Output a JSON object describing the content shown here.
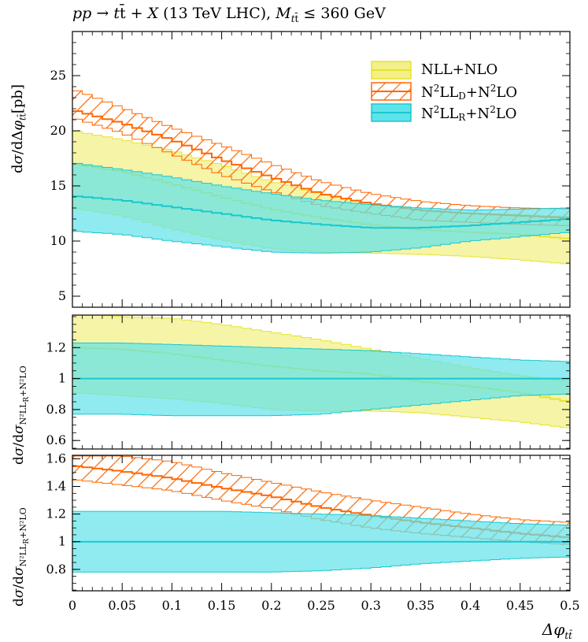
{
  "title": "pp → tt̄ + X (13 TeV LHC), M_tt̄ ≤ 360 GeV",
  "colors": {
    "nll": "#e6e32f",
    "nll_fill": "#f3f08a",
    "d": "#ff6600",
    "r": "#18c8cf",
    "r_fill": "#5fe3ea"
  },
  "chart_data": [
    {
      "type": "line",
      "panel": "main",
      "ylabel": "dσ/dΔφ_tt̄[pb]",
      "xlim": [
        0,
        0.5
      ],
      "ylim": [
        4,
        29
      ],
      "yticks": [
        "5",
        "10",
        "15",
        "20",
        "25"
      ],
      "x": [
        0,
        0.05,
        0.1,
        0.15,
        0.2,
        0.25,
        0.3,
        0.35,
        0.4,
        0.45,
        0.5
      ],
      "legend": [
        "NLL+NLO",
        "N²LL_D+N²LO",
        "N²LL_R+N²LO"
      ],
      "legend_position": "top-right",
      "series": [
        {
          "name": "NLL+NLO",
          "style": "band",
          "central": [
            17.0,
            16.3,
            15.2,
            14.0,
            12.9,
            12.1,
            11.5,
            11.0,
            10.8,
            10.6,
            10.2
          ],
          "lower": [
            13.0,
            12.3,
            11.1,
            10.1,
            9.3,
            9.0,
            8.9,
            8.8,
            8.6,
            8.3,
            7.9
          ],
          "upper": [
            20.0,
            19.2,
            18.2,
            16.9,
            15.4,
            14.3,
            13.4,
            12.8,
            12.5,
            12.4,
            12.2
          ]
        },
        {
          "name": "N²LL_D+N²LO",
          "style": "hatched",
          "central": [
            21.9,
            20.7,
            19.2,
            17.4,
            15.8,
            14.3,
            13.4,
            12.8,
            12.5,
            12.3,
            12.1
          ],
          "lower": [
            21.2,
            19.8,
            17.9,
            16.0,
            14.5,
            13.2,
            12.5,
            11.9,
            11.7,
            11.5,
            11.4
          ],
          "upper": [
            23.8,
            22.1,
            20.3,
            18.7,
            17.0,
            15.4,
            14.3,
            13.6,
            13.2,
            13.0,
            12.9
          ]
        },
        {
          "name": "N²LL_R+N²LO",
          "style": "band",
          "central": [
            14.1,
            13.7,
            13.1,
            12.5,
            11.9,
            11.5,
            11.2,
            11.2,
            11.4,
            11.7,
            12.0
          ],
          "lower": [
            10.9,
            10.6,
            10.0,
            9.5,
            9.0,
            8.9,
            9.0,
            9.4,
            10.0,
            10.4,
            10.8
          ],
          "upper": [
            17.1,
            16.5,
            15.8,
            15.0,
            14.3,
            13.7,
            13.3,
            13.0,
            12.8,
            12.9,
            13.0
          ]
        }
      ]
    },
    {
      "type": "line",
      "panel": "ratio1",
      "ylabel": "dσ/dσ_N²LL_R+N²LO",
      "xlim": [
        0,
        0.5
      ],
      "ylim": [
        0.545,
        1.41
      ],
      "yticks": [
        "0.6",
        "0.8",
        "1",
        "1.2"
      ],
      "x": [
        0,
        0.05,
        0.1,
        0.15,
        0.2,
        0.25,
        0.3,
        0.35,
        0.4,
        0.45,
        0.5
      ],
      "series": [
        {
          "name": "NLL+NLO",
          "style": "band",
          "central": [
            1.2,
            1.19,
            1.16,
            1.12,
            1.08,
            1.05,
            1.03,
            0.98,
            0.95,
            0.91,
            0.85
          ],
          "lower": [
            0.91,
            0.89,
            0.87,
            0.84,
            0.8,
            0.79,
            0.79,
            0.78,
            0.75,
            0.72,
            0.68
          ],
          "upper": [
            1.42,
            1.4,
            1.39,
            1.35,
            1.3,
            1.25,
            1.19,
            1.13,
            1.07,
            1.02,
            0.98
          ]
        },
        {
          "name": "N²LL_R+N²LO",
          "style": "band",
          "central": [
            1,
            1,
            1,
            1,
            1,
            1,
            1,
            1,
            1,
            1,
            1
          ],
          "lower": [
            0.77,
            0.77,
            0.76,
            0.76,
            0.76,
            0.77,
            0.8,
            0.83,
            0.86,
            0.89,
            0.9
          ],
          "upper": [
            1.23,
            1.23,
            1.22,
            1.21,
            1.2,
            1.19,
            1.18,
            1.16,
            1.14,
            1.12,
            1.11
          ]
        }
      ]
    },
    {
      "type": "line",
      "panel": "ratio2",
      "ylabel": "dσ/dσ_N²LL_R+N²LO",
      "xlabel": "Δφ_tt̄",
      "xlim": [
        0,
        0.5
      ],
      "xticks": [
        "0",
        "0.05",
        "0.1",
        "0.15",
        "0.2",
        "0.25",
        "0.3",
        "0.35",
        "0.4",
        "0.45",
        "0.5"
      ],
      "ylim": [
        0.645,
        1.625
      ],
      "yticks": [
        "0.8",
        "1",
        "1.2",
        "1.4",
        "1.6"
      ],
      "x": [
        0,
        0.05,
        0.1,
        0.15,
        0.2,
        0.25,
        0.3,
        0.35,
        0.4,
        0.45,
        0.5
      ],
      "series": [
        {
          "name": "N²LL_D+N²LO",
          "style": "hatched",
          "central": [
            1.55,
            1.51,
            1.46,
            1.39,
            1.33,
            1.25,
            1.19,
            1.14,
            1.1,
            1.06,
            1.03
          ],
          "lower": [
            1.45,
            1.41,
            1.37,
            1.3,
            1.24,
            1.16,
            1.1,
            1.06,
            1.03,
            1.0,
            0.98
          ],
          "upper": [
            1.62,
            1.62,
            1.58,
            1.5,
            1.43,
            1.36,
            1.3,
            1.25,
            1.2,
            1.16,
            1.14
          ]
        },
        {
          "name": "N²LL_R+N²LO",
          "style": "band",
          "central": [
            1,
            1,
            1,
            1,
            1,
            1,
            1,
            1,
            1,
            1,
            1
          ],
          "lower": [
            0.78,
            0.78,
            0.78,
            0.78,
            0.78,
            0.79,
            0.81,
            0.84,
            0.86,
            0.88,
            0.89
          ],
          "upper": [
            1.22,
            1.22,
            1.22,
            1.22,
            1.21,
            1.2,
            1.19,
            1.17,
            1.15,
            1.13,
            1.12
          ]
        }
      ]
    }
  ]
}
